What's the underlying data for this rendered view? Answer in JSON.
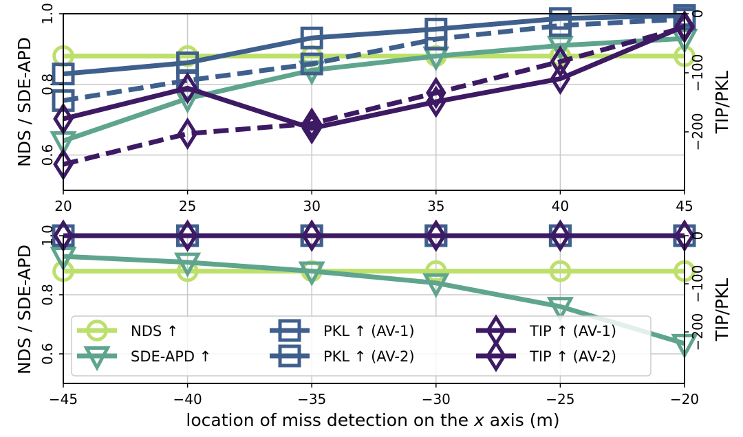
{
  "chart_data": [
    {
      "type": "line",
      "panel": "top",
      "x": [
        20,
        25,
        30,
        35,
        40,
        45
      ],
      "xlim": [
        20,
        45
      ],
      "xticks": [
        "20",
        "25",
        "30",
        "35",
        "40",
        "45"
      ],
      "xlabel": "",
      "ylabel_left": "NDS / SDE-APD",
      "ylim_left": [
        0.5,
        1.0
      ],
      "yticks_left": [
        "0.6",
        "0.8",
        "1.0"
      ],
      "yticks_left_values": [
        0.6,
        0.8,
        1.0
      ],
      "ylabel_right": "TIP/PKL",
      "ylim_right": [
        -299,
        0
      ],
      "yticks_right": [
        "−200",
        "−100",
        "0"
      ],
      "yticks_right_values": [
        -200,
        -100,
        0
      ],
      "grid": true,
      "series": [
        {
          "name": "NDS ↑",
          "axis": "left",
          "marker": "circle",
          "style": "solid",
          "color": "#bddf6b",
          "values": [
            0.88,
            0.88,
            0.88,
            0.88,
            0.88,
            0.88
          ]
        },
        {
          "name": "SDE-APD ↑",
          "axis": "left",
          "marker": "triangle-down",
          "style": "solid",
          "color": "#5fa58e",
          "values": [
            0.64,
            0.76,
            0.84,
            0.88,
            0.91,
            0.93
          ]
        },
        {
          "name": "PKL ↑  (AV-1)",
          "axis": "right",
          "marker": "square",
          "style": "solid",
          "color": "#3f5f8c",
          "values": [
            -102,
            -83,
            -41,
            -26,
            -8,
            -3
          ]
        },
        {
          "name": "PKL ↑  (AV-2)",
          "axis": "right",
          "marker": "square",
          "style": "dashed",
          "color": "#3f5f8c",
          "values": [
            -147,
            -113,
            -85,
            -43,
            -20,
            -9
          ]
        },
        {
          "name": "TIP ↑  (AV-1)",
          "axis": "right",
          "marker": "diamond",
          "style": "solid",
          "color": "#3d1a63",
          "values": [
            -178,
            -126,
            -194,
            -149,
            -110,
            -21
          ]
        },
        {
          "name": "TIP ↑  (AV-2)",
          "axis": "right",
          "marker": "diamond",
          "style": "dashed",
          "color": "#3d1a63",
          "values": [
            -255,
            -203,
            -186,
            -134,
            -81,
            -23
          ]
        }
      ]
    },
    {
      "type": "line",
      "panel": "bottom",
      "x": [
        -45,
        -40,
        -35,
        -30,
        -25,
        -20
      ],
      "xlim": [
        -45,
        -20
      ],
      "xticks": [
        "−45",
        "−40",
        "−35",
        "−30",
        "−25",
        "−20"
      ],
      "xlabel_parts": [
        "location of miss detection on the ",
        "x",
        " axis (m)"
      ],
      "ylabel_left": "NDS / SDE-APD",
      "ylim_left": [
        0.5,
        1.0
      ],
      "yticks_left": [
        "0.6",
        "0.8",
        "1.0"
      ],
      "yticks_left_values": [
        0.6,
        0.8,
        1.0
      ],
      "ylabel_right": "TIP/PKL",
      "ylim_right": [
        -307,
        0
      ],
      "yticks_right": [
        "−200",
        "−100",
        "0"
      ],
      "yticks_right_values": [
        -200,
        -100,
        0
      ],
      "grid": true,
      "legend_location": "lower-center",
      "series": [
        {
          "name": "NDS ↑",
          "axis": "left",
          "marker": "circle",
          "style": "solid",
          "color": "#bddf6b",
          "values": [
            0.88,
            0.88,
            0.88,
            0.88,
            0.88,
            0.88
          ]
        },
        {
          "name": "SDE-APD ↑",
          "axis": "left",
          "marker": "triangle-down",
          "style": "solid",
          "color": "#5fa58e",
          "values": [
            0.93,
            0.91,
            0.88,
            0.84,
            0.76,
            0.635
          ]
        },
        {
          "name": "PKL ↑  (AV-1)",
          "axis": "right",
          "marker": "square",
          "style": "solid",
          "color": "#3f5f8c",
          "values": [
            0,
            0,
            0,
            0,
            0,
            0
          ]
        },
        {
          "name": "PKL ↑  (AV-2)",
          "axis": "right",
          "marker": "square",
          "style": "dashed",
          "color": "#3f5f8c",
          "values": [
            0,
            0,
            0,
            0,
            0,
            0
          ]
        },
        {
          "name": "TIP ↑  (AV-1)",
          "axis": "right",
          "marker": "diamond",
          "style": "solid",
          "color": "#3d1a63",
          "values": [
            0,
            0,
            0,
            0,
            0,
            0
          ]
        },
        {
          "name": "TIP ↑  (AV-2)",
          "axis": "right",
          "marker": "diamond",
          "style": "dashed",
          "color": "#3d1a63",
          "values": [
            0,
            0,
            0,
            0,
            0,
            0
          ]
        }
      ]
    }
  ],
  "legend": {
    "items": [
      {
        "label": "NDS ↑",
        "marker": "circle",
        "style": "solid",
        "color": "#bddf6b"
      },
      {
        "label": "SDE-APD ↑",
        "marker": "triangle-down",
        "style": "solid",
        "color": "#5fa58e"
      },
      {
        "label": "PKL ↑  (AV-1)",
        "marker": "square",
        "style": "solid",
        "color": "#3f5f8c"
      },
      {
        "label": "PKL ↑  (AV-2)",
        "marker": "square",
        "style": "dashed",
        "color": "#3f5f8c"
      },
      {
        "label": "TIP ↑  (AV-1)",
        "marker": "diamond",
        "style": "solid",
        "color": "#3d1a63"
      },
      {
        "label": "TIP ↑  (AV-2)",
        "marker": "diamond",
        "style": "dashed",
        "color": "#3d1a63"
      }
    ]
  }
}
